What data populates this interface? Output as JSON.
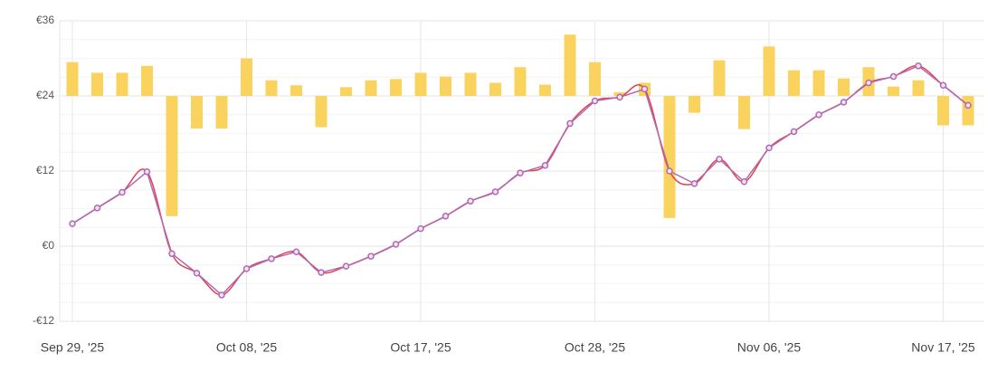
{
  "chart_data": {
    "type": "line",
    "categories": [
      "Sep 29, '25",
      null,
      null,
      null,
      null,
      null,
      null,
      "Oct 08, '25",
      null,
      null,
      null,
      null,
      null,
      null,
      "Oct 17, '25",
      null,
      null,
      null,
      null,
      null,
      null,
      "Oct 28, '25",
      null,
      null,
      null,
      null,
      null,
      null,
      "Nov 06, '25",
      null,
      null,
      null,
      null,
      null,
      null,
      "Nov 17, '25",
      null
    ],
    "series": [
      {
        "type": "line",
        "color": "#b06ab3",
        "smooth_color": "#e0424f",
        "values": [
          3.6,
          6.1,
          8.6,
          11.9,
          -1.2,
          -4.3,
          -7.8,
          -3.6,
          -2.0,
          -0.9,
          -4.2,
          -3.2,
          -1.6,
          0.3,
          2.8,
          4.8,
          7.2,
          8.7,
          11.7,
          12.9,
          19.6,
          23.2,
          23.8,
          25.1,
          12.0,
          10.0,
          13.9,
          10.3,
          15.7,
          18.3,
          21.0,
          23.0,
          26.1,
          27.1,
          28.8,
          25.7,
          22.5
        ]
      },
      {
        "type": "bar",
        "color": "#fad35e",
        "base": 24,
        "values": [
          29.4,
          27.7,
          27.7,
          28.8,
          4.8,
          18.8,
          18.8,
          30.0,
          26.5,
          25.7,
          19.0,
          25.4,
          26.5,
          26.7,
          27.7,
          27.1,
          27.7,
          26.1,
          28.6,
          25.8,
          33.8,
          29.4,
          24.6,
          26.1,
          4.5,
          21.3,
          29.7,
          18.7,
          31.9,
          28.1,
          28.1,
          26.8,
          28.6,
          25.5,
          26.5,
          19.3,
          19.3
        ]
      }
    ],
    "ylim": [
      -12,
      36
    ],
    "yticks": [
      {
        "value": -12,
        "label": "-€12"
      },
      {
        "value": 0,
        "label": "€0"
      },
      {
        "value": 12,
        "label": "€12"
      },
      {
        "value": 24,
        "label": "€24"
      },
      {
        "value": 36,
        "label": "€36"
      }
    ],
    "grid": true
  }
}
